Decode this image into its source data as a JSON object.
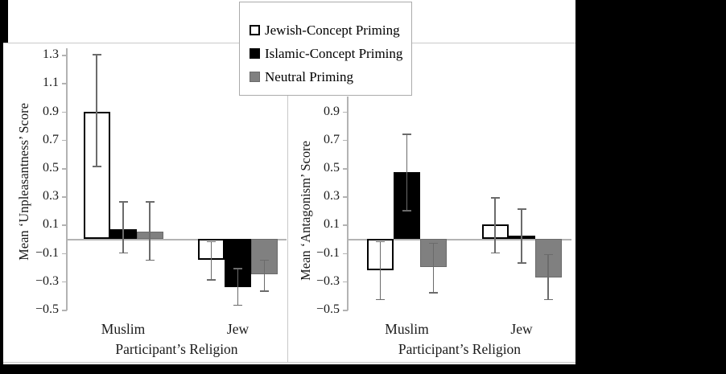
{
  "figure": {
    "legend": {
      "items": [
        {
          "label": "Jewish-Concept Priming",
          "fill": "#ffffff",
          "border": "#000000"
        },
        {
          "label": "Islamic-Concept Priming",
          "fill": "#000000",
          "border": "#000000"
        },
        {
          "label": "Neutral Priming",
          "fill": "#808080",
          "border": "#6a6a6a"
        }
      ]
    },
    "colors": {
      "axis_line": "#b3b3b3",
      "error_bar": "#6b6b6b",
      "panel_border": "#c9c9c9",
      "scan_border": "#000000"
    }
  },
  "chart_data": [
    {
      "type": "bar",
      "title": "",
      "ylabel": "Mean ‘Unpleasantness’ Score",
      "xlabel": "Participant’s Religion",
      "categories": [
        "Muslim",
        "Jew"
      ],
      "ylim": [
        -0.5,
        1.3
      ],
      "yticks": [
        1.3,
        1.1,
        0.9,
        0.7,
        0.5,
        0.3,
        0.1,
        -0.1,
        -0.3,
        -0.5
      ],
      "grid": false,
      "legend_position": "top-center",
      "series": [
        {
          "name": "Jewish-Concept Priming",
          "fill": "#ffffff",
          "border": "#000000",
          "values": [
            0.9,
            -0.15
          ],
          "error_high": [
            1.3,
            -0.02
          ],
          "error_low": [
            0.51,
            -0.29
          ]
        },
        {
          "name": "Islamic-Concept Priming",
          "fill": "#000000",
          "border": "#000000",
          "values": [
            0.07,
            -0.34
          ],
          "error_high": [
            0.26,
            -0.21
          ],
          "error_low": [
            -0.1,
            -0.47
          ]
        },
        {
          "name": "Neutral Priming",
          "fill": "#808080",
          "border": "#6a6a6a",
          "values": [
            0.05,
            -0.25
          ],
          "error_high": [
            0.26,
            -0.15
          ],
          "error_low": [
            -0.15,
            -0.37
          ]
        }
      ]
    },
    {
      "type": "bar",
      "title": "",
      "ylabel": "Mean ‘Antagonism’ Score",
      "xlabel": "Participant’s Religion",
      "categories": [
        "Muslim",
        "Jew"
      ],
      "ylim": [
        -0.5,
        0.9
      ],
      "yticks": [
        0.9,
        0.7,
        0.5,
        0.3,
        0.1,
        -0.1,
        -0.3,
        -0.5
      ],
      "grid": false,
      "legend_position": "top-center",
      "series": [
        {
          "name": "Jewish-Concept Priming",
          "fill": "#ffffff",
          "border": "#000000",
          "values": [
            -0.22,
            0.1
          ],
          "error_high": [
            -0.02,
            0.29
          ],
          "error_low": [
            -0.43,
            -0.1
          ]
        },
        {
          "name": "Islamic-Concept Priming",
          "fill": "#000000",
          "border": "#000000",
          "values": [
            0.47,
            0.02
          ],
          "error_high": [
            0.74,
            0.21
          ],
          "error_low": [
            0.2,
            -0.17
          ]
        },
        {
          "name": "Neutral Priming",
          "fill": "#808080",
          "border": "#6a6a6a",
          "values": [
            -0.2,
            -0.27
          ],
          "error_high": [
            -0.03,
            -0.11
          ],
          "error_low": [
            -0.38,
            -0.43
          ]
        }
      ]
    }
  ]
}
